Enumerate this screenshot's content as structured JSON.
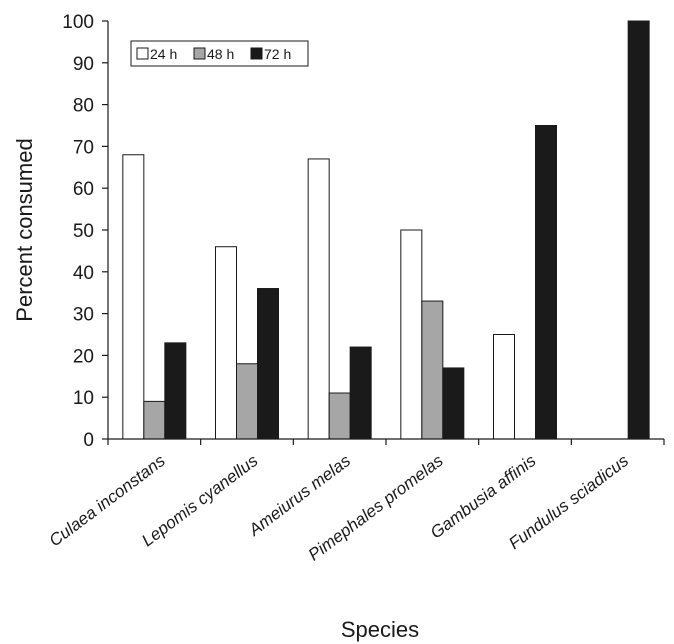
{
  "chart_data": {
    "type": "bar",
    "xlabel": "Species",
    "ylabel": "Percent consumed",
    "ylim": [
      0,
      100
    ],
    "yticks": [
      0,
      10,
      20,
      30,
      40,
      50,
      60,
      70,
      80,
      90,
      100
    ],
    "grid": false,
    "legend_position": "top-left",
    "categories": [
      "Culaea inconstans",
      "Lepomis cyanellus",
      "Ameiurus melas",
      "Pimephales promelas",
      "Gambusia affinis",
      "Fundulus sciadicus"
    ],
    "series": [
      {
        "name": "24 h",
        "color": "#ffffff",
        "values": [
          68,
          46,
          67,
          50,
          25,
          0
        ]
      },
      {
        "name": "48 h",
        "color": "#a6a6a6",
        "values": [
          9,
          18,
          11,
          33,
          0,
          0
        ]
      },
      {
        "name": "72 h",
        "color": "#1a1a1a",
        "values": [
          23,
          36,
          22,
          17,
          75,
          100
        ]
      }
    ]
  }
}
